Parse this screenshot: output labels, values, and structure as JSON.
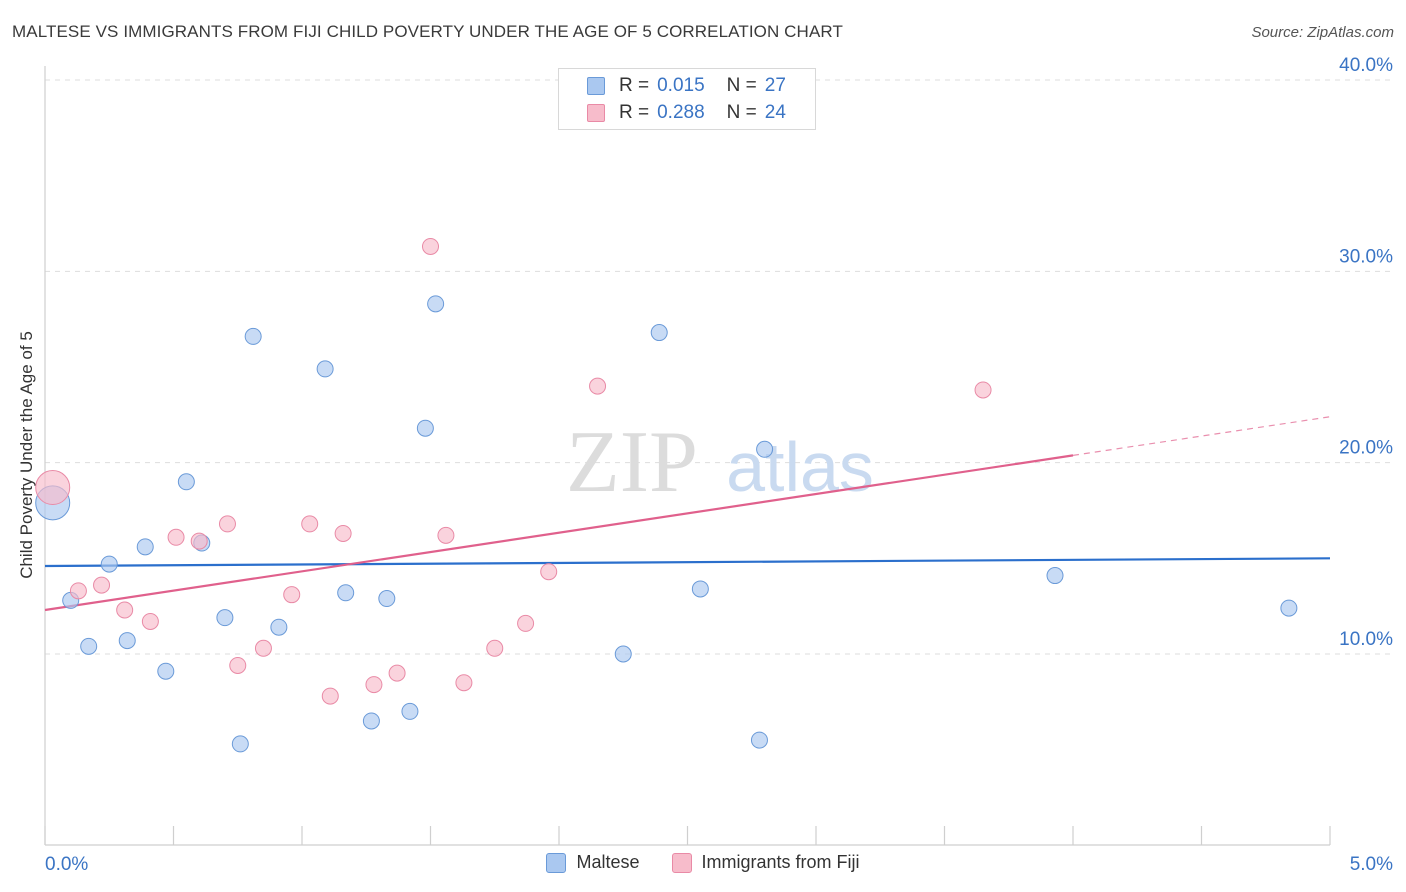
{
  "header": {
    "title": "MALTESE VS IMMIGRANTS FROM FIJI CHILD POVERTY UNDER THE AGE OF 5 CORRELATION CHART",
    "source": "Source: ZipAtlas.com"
  },
  "watermark": {
    "zip": "ZIP",
    "atlas": "atlas"
  },
  "stats": {
    "maltese": {
      "r_label": "R =",
      "r_value": "0.015",
      "n_label": "N =",
      "n_value": "27"
    },
    "fiji": {
      "r_label": "R =",
      "r_value": "0.288",
      "n_label": "N =",
      "n_value": "24"
    }
  },
  "legend": {
    "maltese": "Maltese",
    "fiji": "Immigrants from Fiji"
  },
  "colors": {
    "maltese_fill": "#aac8f0",
    "maltese_stroke": "#6a9ad8",
    "maltese_line": "#2b6fcc",
    "fiji_fill": "#f7bccb",
    "fiji_stroke": "#e98aa6",
    "fiji_line": "#e0608c",
    "axis_text": "#3a74c4",
    "grid": "#dddddd"
  },
  "chart_data": {
    "type": "scatter",
    "title": "MALTESE VS IMMIGRANTS FROM FIJI CHILD POVERTY UNDER THE AGE OF 5 CORRELATION CHART",
    "xlabel": "",
    "ylabel": "Child Poverty Under the Age of 5",
    "xlim": [
      0,
      5
    ],
    "ylim": [
      0,
      40
    ],
    "x_ticks": [
      0,
      0.5,
      1,
      1.5,
      2,
      2.5,
      3,
      3.5,
      4,
      4.5,
      5
    ],
    "x_tick_labels": [
      {
        "value": 0,
        "label": "0.0%"
      },
      {
        "value": 5,
        "label": "5.0%"
      }
    ],
    "y_ticks": [
      {
        "value": 10,
        "label": "10.0%"
      },
      {
        "value": 20,
        "label": "20.0%"
      },
      {
        "value": 30,
        "label": "30.0%"
      },
      {
        "value": 40,
        "label": "40.0%"
      }
    ],
    "grid": true,
    "legend_position": "bottom",
    "series": [
      {
        "name": "Maltese",
        "key": "maltese",
        "points": [
          {
            "x": 0.03,
            "y": 17.9,
            "size": "large"
          },
          {
            "x": 0.1,
            "y": 12.8
          },
          {
            "x": 0.17,
            "y": 10.4
          },
          {
            "x": 0.25,
            "y": 14.7
          },
          {
            "x": 0.32,
            "y": 10.7
          },
          {
            "x": 0.39,
            "y": 15.6
          },
          {
            "x": 0.47,
            "y": 9.1
          },
          {
            "x": 0.55,
            "y": 19.0
          },
          {
            "x": 0.61,
            "y": 15.8
          },
          {
            "x": 0.7,
            "y": 11.9
          },
          {
            "x": 0.76,
            "y": 5.3
          },
          {
            "x": 0.81,
            "y": 26.6
          },
          {
            "x": 0.91,
            "y": 11.4
          },
          {
            "x": 1.09,
            "y": 24.9
          },
          {
            "x": 1.17,
            "y": 13.2
          },
          {
            "x": 1.27,
            "y": 6.5
          },
          {
            "x": 1.33,
            "y": 12.9
          },
          {
            "x": 1.42,
            "y": 7.0
          },
          {
            "x": 1.48,
            "y": 21.8
          },
          {
            "x": 1.52,
            "y": 28.3
          },
          {
            "x": 2.25,
            "y": 10.0
          },
          {
            "x": 2.39,
            "y": 26.8
          },
          {
            "x": 2.55,
            "y": 13.4
          },
          {
            "x": 2.78,
            "y": 5.5
          },
          {
            "x": 2.8,
            "y": 20.7
          },
          {
            "x": 3.93,
            "y": 14.1
          },
          {
            "x": 4.84,
            "y": 12.4
          }
        ],
        "trend": {
          "x1": 0,
          "y1": 14.6,
          "x2": 5,
          "y2": 15.0,
          "dashed_from": null
        }
      },
      {
        "name": "Immigrants from Fiji",
        "key": "fiji",
        "points": [
          {
            "x": 0.03,
            "y": 18.7,
            "size": "large"
          },
          {
            "x": 0.13,
            "y": 13.3
          },
          {
            "x": 0.22,
            "y": 13.6
          },
          {
            "x": 0.31,
            "y": 12.3
          },
          {
            "x": 0.41,
            "y": 11.7
          },
          {
            "x": 0.51,
            "y": 16.1
          },
          {
            "x": 0.6,
            "y": 15.9
          },
          {
            "x": 0.71,
            "y": 16.8
          },
          {
            "x": 0.75,
            "y": 9.4
          },
          {
            "x": 0.85,
            "y": 10.3
          },
          {
            "x": 0.96,
            "y": 13.1
          },
          {
            "x": 1.03,
            "y": 16.8
          },
          {
            "x": 1.11,
            "y": 7.8
          },
          {
            "x": 1.16,
            "y": 16.3
          },
          {
            "x": 1.28,
            "y": 8.4
          },
          {
            "x": 1.37,
            "y": 9.0
          },
          {
            "x": 1.5,
            "y": 31.3
          },
          {
            "x": 1.56,
            "y": 16.2
          },
          {
            "x": 1.63,
            "y": 8.5
          },
          {
            "x": 1.75,
            "y": 10.3
          },
          {
            "x": 1.87,
            "y": 11.6
          },
          {
            "x": 1.96,
            "y": 14.3
          },
          {
            "x": 2.15,
            "y": 24.0
          },
          {
            "x": 3.65,
            "y": 23.8
          }
        ],
        "trend": {
          "x1": 0,
          "y1": 12.3,
          "x2": 5,
          "y2": 22.4,
          "dashed_from": 4.0
        }
      }
    ]
  }
}
